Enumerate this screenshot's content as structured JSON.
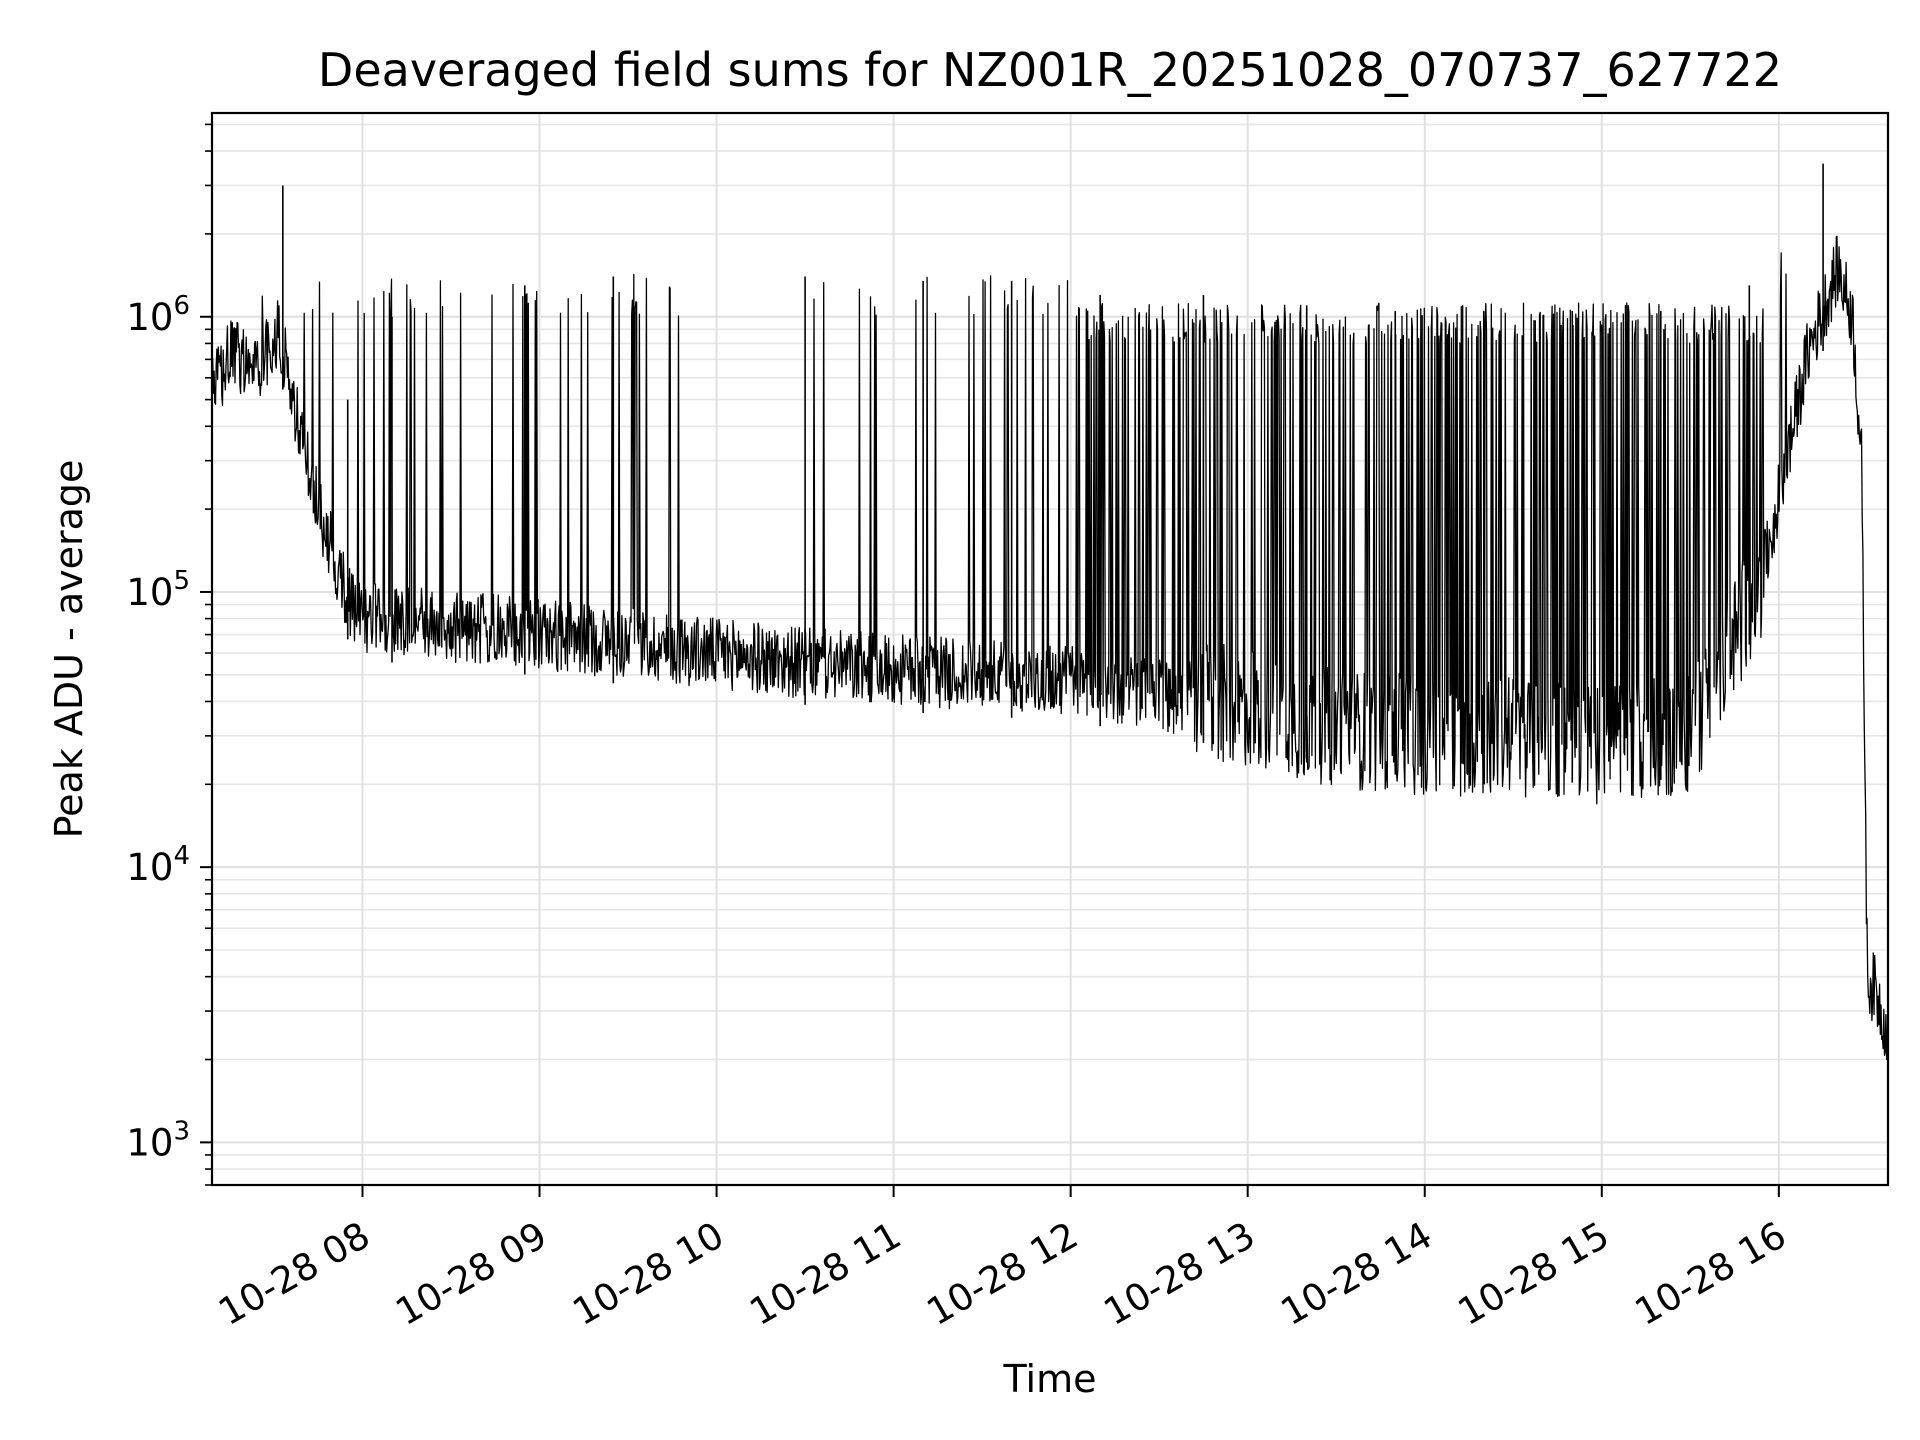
{
  "chart_data": {
    "type": "line",
    "title": "Deaveraged field sums for NZ001R_20251028_070737_627722",
    "xlabel": "Time",
    "ylabel": "Peak ADU - average",
    "yscale": "log",
    "ylim": [
      700,
      5500000
    ],
    "xlim": [
      "10-28 07:09",
      "10-28 16:37"
    ],
    "grid": true,
    "color": "#000000",
    "x_ticks": [
      "10-28 08",
      "10-28 09",
      "10-28 10",
      "10-28 11",
      "10-28 12",
      "10-28 13",
      "10-28 14",
      "10-28 15",
      "10-28 16"
    ],
    "y_ticks": [
      {
        "base": "10",
        "exp": "3",
        "value": 1000
      },
      {
        "base": "10",
        "exp": "4",
        "value": 10000
      },
      {
        "base": "10",
        "exp": "5",
        "value": 100000
      },
      {
        "base": "10",
        "exp": "6",
        "value": 1000000
      }
    ],
    "series": [
      {
        "description": "approximate baseline envelope and spike tops, read off the chart",
        "x": [
          "10-28 07:09",
          "10-28 07:15",
          "10-28 07:25",
          "10-28 07:32",
          "10-28 07:40",
          "10-28 07:48",
          "10-28 07:55",
          "10-28 08:00",
          "10-28 08:30",
          "10-28 09:00",
          "10-28 09:30",
          "10-28 10:00",
          "10-28 10:30",
          "10-28 11:00",
          "10-28 11:30",
          "10-28 12:00",
          "10-28 12:30",
          "10-28 13:00",
          "10-28 13:30",
          "10-28 14:00",
          "10-28 14:30",
          "10-28 15:00",
          "10-28 15:30",
          "10-28 15:55",
          "10-28 16:10",
          "10-28 16:20",
          "10-28 16:25",
          "10-28 16:28",
          "10-28 16:30",
          "10-28 16:33",
          "10-28 16:37"
        ],
        "y": [
          520000,
          720000,
          680000,
          870000,
          320000,
          160000,
          95000,
          80000,
          75000,
          70000,
          65000,
          60000,
          55000,
          52000,
          50000,
          48000,
          42000,
          38000,
          32000,
          30000,
          30000,
          28000,
          30000,
          120000,
          750000,
          1500000,
          1000000,
          300000,
          4000,
          3500,
          2500
        ],
        "spike_tops_x": [
          "10-28 07:33",
          "10-28 07:55",
          "10-28 08:10",
          "10-28 08:55",
          "10-28 09:25",
          "10-28 10:30",
          "10-28 11:10",
          "10-28 11:40",
          "10-28 12:10",
          "10-28 12:45",
          "10-28 13:20",
          "10-28 13:50",
          "10-28 14:20",
          "10-28 14:50",
          "10-28 15:20",
          "10-28 15:50",
          "10-28 16:15"
        ],
        "spike_tops_y": [
          3000000,
          500000,
          1000000,
          1300000,
          1400000,
          1400000,
          1350000,
          1350000,
          1200000,
          1200000,
          1100000,
          1050000,
          1050000,
          1050000,
          1050000,
          1300000,
          3600000
        ]
      }
    ]
  }
}
